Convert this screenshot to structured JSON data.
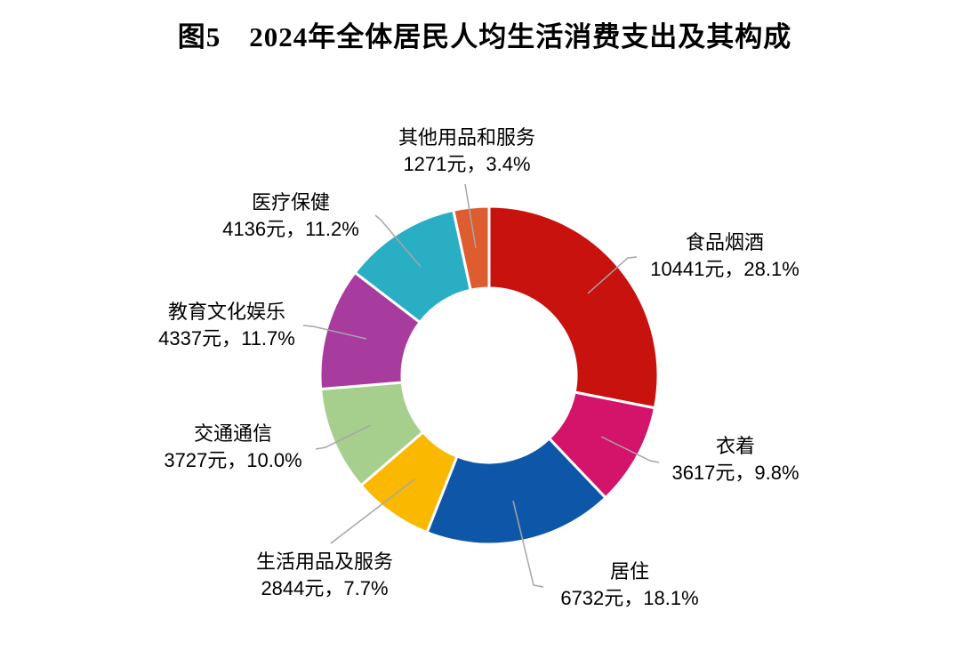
{
  "title": "图5　2024年全体居民人均生活消费支出及其构成",
  "chart_data": {
    "type": "pie",
    "subtype": "donut",
    "title": "图5　2024年全体居民人均生活消费支出及其构成",
    "unit": "元",
    "total_percent": 100.0,
    "start_angle_deg": 0,
    "direction": "clockwise",
    "legend_position": "none",
    "background": "#FFFFFF",
    "leader_line_color": "#A6A6A6",
    "segments": [
      {
        "label": "食品烟酒",
        "value": 10441,
        "percent": 28.1,
        "display": "10441元，28.1%",
        "color": "#C8120E"
      },
      {
        "label": "衣着",
        "value": 3617,
        "percent": 9.8,
        "display": "3617元，9.8%",
        "color": "#D4136B"
      },
      {
        "label": "居住",
        "value": 6732,
        "percent": 18.1,
        "display": "6732元，18.1%",
        "color": "#0E57A8"
      },
      {
        "label": "生活用品及服务",
        "value": 2844,
        "percent": 7.7,
        "display": "2844元，7.7%",
        "color": "#FBB800"
      },
      {
        "label": "交通通信",
        "value": 3727,
        "percent": 10.0,
        "display": "3727元，10.0%",
        "color": "#A6CF8D"
      },
      {
        "label": "教育文化娱乐",
        "value": 4337,
        "percent": 11.7,
        "display": "4337元，11.7%",
        "color": "#A73C9E"
      },
      {
        "label": "医疗保健",
        "value": 4136,
        "percent": 11.2,
        "display": "4136元，11.2%",
        "color": "#29AEC4"
      },
      {
        "label": "其他用品和服务",
        "value": 1271,
        "percent": 3.4,
        "display": "1271元，3.4%",
        "color": "#DD5C30"
      }
    ]
  }
}
